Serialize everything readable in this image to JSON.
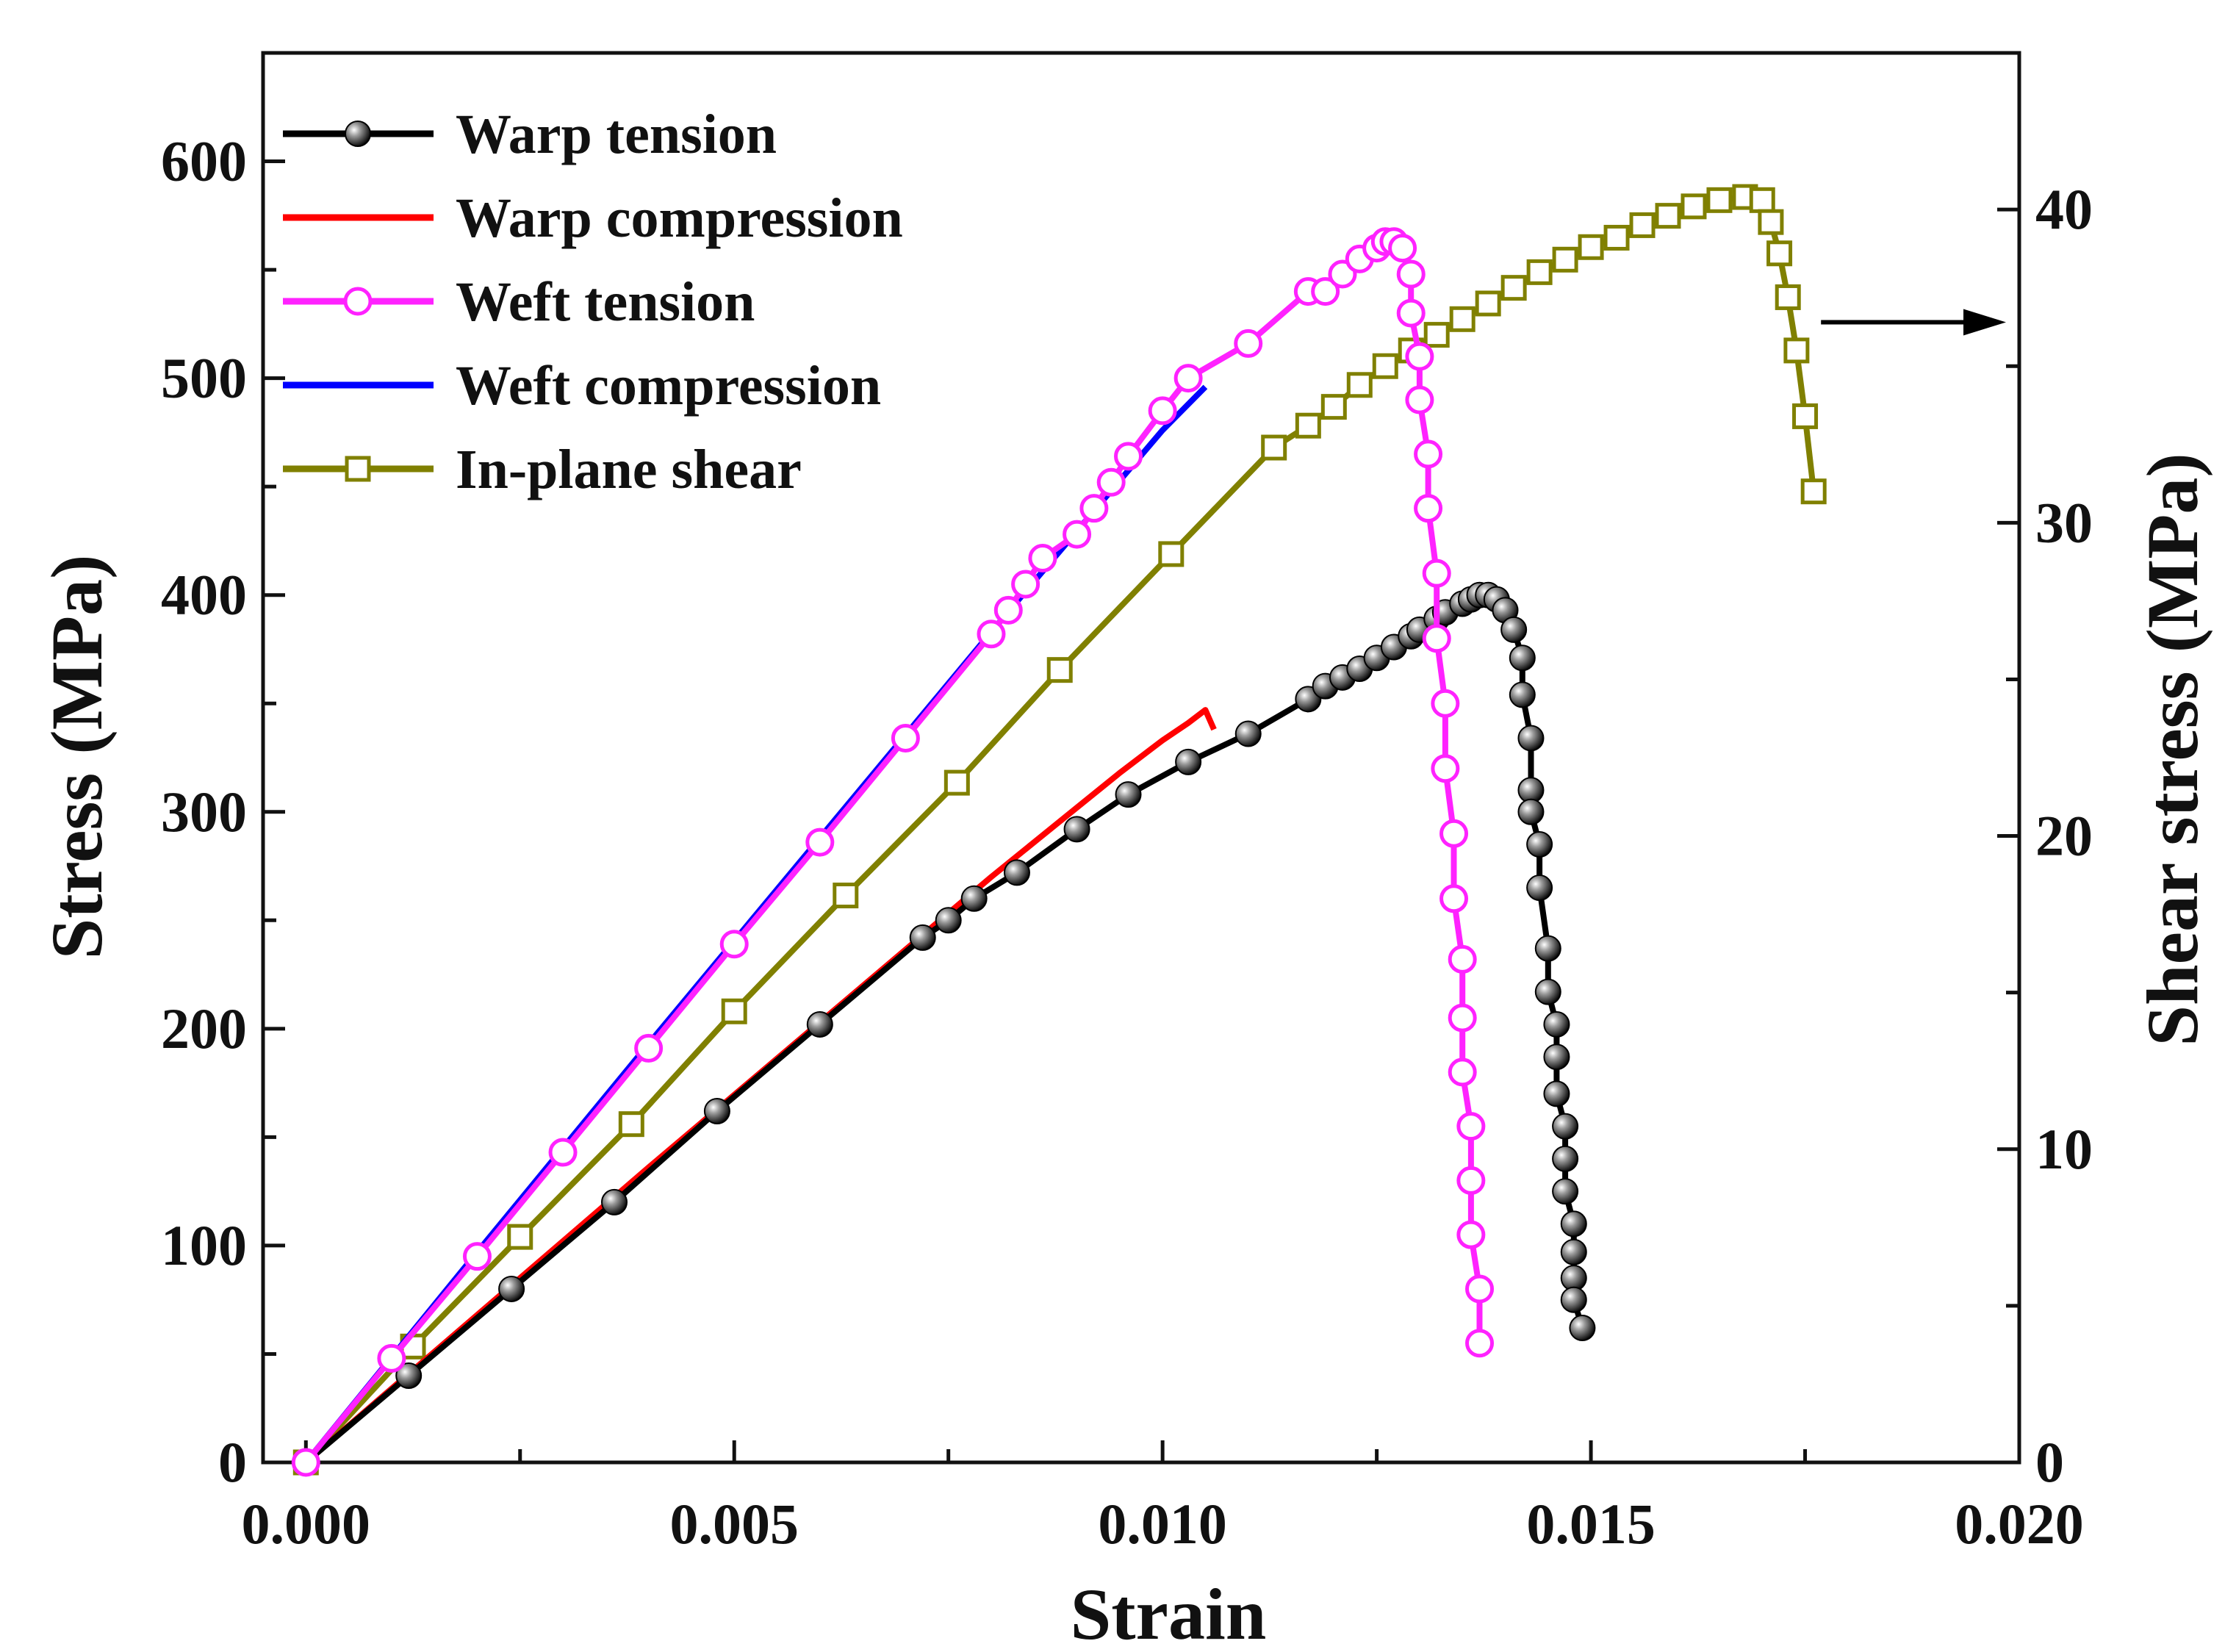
{
  "chart_data": {
    "type": "line",
    "xlabel": "Strain",
    "ylabel": "Stress (MPa)",
    "y2label": "Shear stress (MPa)",
    "xlim": [
      -0.0005,
      0.02
    ],
    "ylim": [
      0,
      650
    ],
    "y2lim": [
      0,
      45
    ],
    "xticks": [
      0.0,
      0.005,
      0.01,
      0.015,
      0.02
    ],
    "xtick_labels": [
      "0.000",
      "0.005",
      "0.010",
      "0.015",
      "0.020"
    ],
    "yticks": [
      0,
      100,
      200,
      300,
      400,
      500,
      600
    ],
    "ytick_labels": [
      "0",
      "100",
      "200",
      "300",
      "400",
      "500",
      "600"
    ],
    "y2ticks": [
      0,
      10,
      20,
      30,
      40
    ],
    "y2tick_labels": [
      "0",
      "10",
      "20",
      "30",
      "40"
    ],
    "legend_position": "top-left",
    "annotation": "arrow pointing from In-plane shear curve to right axis",
    "annotation_point": [
      0.0176,
      36.4
    ],
    "series": [
      {
        "name": "Warp tension",
        "color": "#000000",
        "marker": "sphere",
        "axis": "left",
        "x": [
          0,
          0.0012,
          0.0024,
          0.0036,
          0.0048,
          0.006,
          0.0072,
          0.0075,
          0.0078,
          0.0083,
          0.009,
          0.0096,
          0.0103,
          0.011,
          0.0117,
          0.0119,
          0.0121,
          0.0123,
          0.0125,
          0.0127,
          0.0129,
          0.013,
          0.0132,
          0.0133,
          0.0135,
          0.0136,
          0.0137,
          0.0138,
          0.0139,
          0.014,
          0.0141,
          0.0142,
          0.0142,
          0.0143,
          0.0143,
          0.0143,
          0.0144,
          0.0144,
          0.0145,
          0.0145,
          0.0146,
          0.0146,
          0.0146,
          0.0147,
          0.0147,
          0.0147,
          0.0148,
          0.0148,
          0.0148,
          0.0148,
          0.0149
        ],
        "y": [
          0,
          40,
          80,
          120,
          162,
          202,
          242,
          250,
          260,
          272,
          292,
          308,
          323,
          336,
          352,
          358,
          362,
          366,
          371,
          376,
          381,
          384,
          389,
          392,
          396,
          398,
          400,
          400,
          398,
          393,
          384,
          371,
          354,
          334,
          310,
          300,
          285,
          265,
          237,
          217,
          202,
          187,
          170,
          155,
          140,
          125,
          110,
          97,
          85,
          75,
          62
        ]
      },
      {
        "name": "Warp compression",
        "color": "#ff0000",
        "marker": "none",
        "axis": "left",
        "x": [
          0,
          0.002,
          0.004,
          0.006,
          0.008,
          0.009,
          0.0095,
          0.01,
          0.0103,
          0.0105,
          0.0106
        ],
        "y": [
          0,
          68,
          136,
          203,
          270,
          302,
          318,
          333,
          341,
          347,
          338
        ]
      },
      {
        "name": "Weft tension",
        "color": "#ff22ff",
        "marker": "circle",
        "axis": "left",
        "x": [
          0,
          0.001,
          0.002,
          0.003,
          0.004,
          0.005,
          0.006,
          0.007,
          0.008,
          0.0082,
          0.0084,
          0.0086,
          0.009,
          0.0092,
          0.0094,
          0.0096,
          0.01,
          0.0103,
          0.011,
          0.0117,
          0.0119,
          0.0121,
          0.0123,
          0.0125,
          0.0126,
          0.0127,
          0.0128,
          0.0129,
          0.0129,
          0.013,
          0.013,
          0.0131,
          0.0131,
          0.0132,
          0.0132,
          0.0133,
          0.0133,
          0.0134,
          0.0134,
          0.0135,
          0.0135,
          0.0135,
          0.0136,
          0.0136,
          0.0136,
          0.0137,
          0.0137
        ],
        "y": [
          0,
          48,
          95,
          143,
          191,
          239,
          286,
          334,
          382,
          393,
          405,
          417,
          428,
          440,
          452,
          464,
          485,
          500,
          516,
          540,
          540,
          548,
          555,
          560,
          563,
          563,
          560,
          548,
          530,
          510,
          490,
          465,
          440,
          410,
          380,
          350,
          320,
          290,
          260,
          232,
          205,
          180,
          155,
          130,
          105,
          80,
          55
        ]
      },
      {
        "name": "Weft compression",
        "color": "#0000ff",
        "marker": "none",
        "axis": "left",
        "x": [
          0,
          0.002,
          0.004,
          0.006,
          0.008,
          0.01,
          0.0105
        ],
        "y": [
          0,
          97,
          193,
          288,
          383,
          476,
          496
        ]
      },
      {
        "name": "In-plane shear",
        "color": "#808000",
        "marker": "square",
        "axis": "right",
        "x": [
          0,
          0.00125,
          0.0025,
          0.0038,
          0.005,
          0.0063,
          0.0076,
          0.0088,
          0.0101,
          0.0113,
          0.0117,
          0.012,
          0.0123,
          0.0126,
          0.0129,
          0.0132,
          0.0135,
          0.0138,
          0.0141,
          0.0144,
          0.0147,
          0.015,
          0.0153,
          0.0156,
          0.0159,
          0.0162,
          0.0165,
          0.0168,
          0.017,
          0.0171,
          0.0172,
          0.0173,
          0.0174,
          0.0175,
          0.0176
        ],
        "y": [
          0,
          3.7,
          7.2,
          10.8,
          14.4,
          18.1,
          21.7,
          25.3,
          29.0,
          32.4,
          33.1,
          33.7,
          34.4,
          35.0,
          35.5,
          36.0,
          36.5,
          37.0,
          37.5,
          38.0,
          38.4,
          38.8,
          39.1,
          39.5,
          39.8,
          40.1,
          40.3,
          40.4,
          40.3,
          39.6,
          38.6,
          37.2,
          35.5,
          33.4,
          31.0
        ]
      }
    ]
  }
}
